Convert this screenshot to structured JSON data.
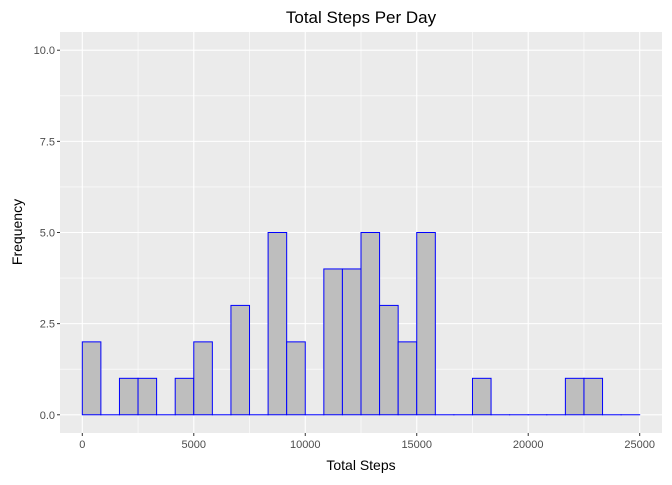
{
  "chart_data": {
    "type": "bar",
    "subtype": "histogram",
    "title": "Total Steps Per Day",
    "xlabel": "Total Steps",
    "ylabel": "Frequency",
    "xlim": [
      -1000,
      26000
    ],
    "ylim": [
      -0.5,
      10.5
    ],
    "x_ticks": [
      0,
      5000,
      10000,
      15000,
      20000,
      25000
    ],
    "x_tick_labels": [
      "0",
      "5000",
      "10000",
      "15000",
      "20000",
      "25000"
    ],
    "y_ticks": [
      0,
      2.5,
      5,
      7.5,
      10
    ],
    "y_tick_labels": [
      "0.0",
      "2.5",
      "5.0",
      "7.5",
      "10.0"
    ],
    "bin_width": 833.33,
    "bins_start": 0,
    "counts": [
      2,
      0,
      1,
      1,
      0,
      1,
      2,
      0,
      3,
      0,
      5,
      2,
      0,
      4,
      4,
      5,
      3,
      2,
      5,
      0,
      0,
      1,
      0,
      0,
      0,
      0,
      1,
      1,
      0,
      0
    ],
    "grid": true,
    "legend": "none",
    "colors": {
      "panel_background": "#ebebeb",
      "grid": "#ffffff",
      "bar_fill": "#bebebe",
      "bar_outline": "#0000ff"
    }
  }
}
